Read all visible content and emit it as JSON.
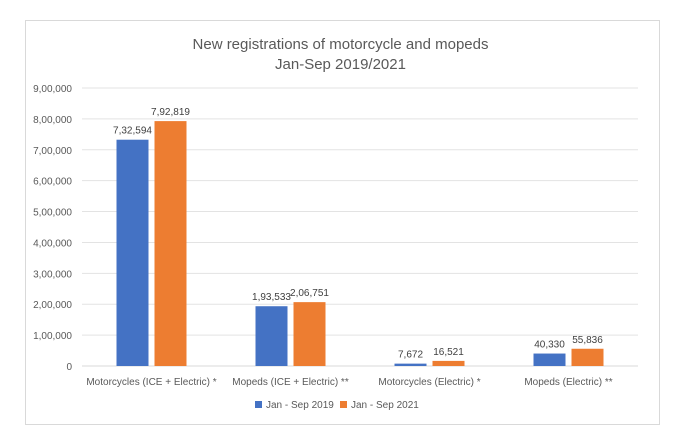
{
  "chart_data": {
    "type": "bar",
    "title": [
      "New registrations of motorcycle and mopeds",
      "Jan-Sep 2019/2021"
    ],
    "categories": [
      "Motorcycles (ICE + Electric) *",
      "Mopeds (ICE + Electric) **",
      "Motorcycles (Electric) *",
      "Mopeds (Electric) **"
    ],
    "series": [
      {
        "name": "Jan - Sep 2019",
        "color": "#4472c4",
        "values": [
          732594,
          193533,
          7672,
          40330
        ],
        "labels": [
          "7,32,594",
          "1,93,533",
          "7,672",
          "40,330"
        ]
      },
      {
        "name": "Jan - Sep 2021",
        "color": "#ed7d31",
        "values": [
          792819,
          206751,
          16521,
          55836
        ],
        "labels": [
          "7,92,819",
          "2,06,751",
          "16,521",
          "55,836"
        ]
      }
    ],
    "ylim": [
      0,
      900000
    ],
    "yticks": [
      0,
      100000,
      200000,
      300000,
      400000,
      500000,
      600000,
      700000,
      800000,
      900000
    ],
    "ytick_labels": [
      "0",
      "1,00,000",
      "2,00,000",
      "3,00,000",
      "4,00,000",
      "5,00,000",
      "6,00,000",
      "7,00,000",
      "8,00,000",
      "9,00,000"
    ],
    "grid": true,
    "legend": "bottom"
  }
}
